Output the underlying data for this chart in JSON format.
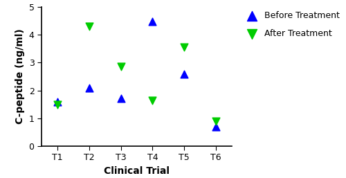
{
  "categories": [
    "T1",
    "T2",
    "T3",
    "T4",
    "T5",
    "T6"
  ],
  "before_treatment": [
    1.6,
    2.08,
    1.72,
    4.48,
    2.6,
    0.68
  ],
  "after_treatment": [
    1.48,
    4.32,
    2.85,
    1.65,
    3.55,
    0.88
  ],
  "before_color": "#0000FF",
  "after_color": "#00CC00",
  "xlabel": "Clinical Trial",
  "ylabel": "C-peptide (ng/ml)",
  "ylim": [
    0,
    5
  ],
  "yticks": [
    0,
    1,
    2,
    3,
    4,
    5
  ],
  "label_fontsize": 10,
  "tick_fontsize": 9,
  "legend_before": "Before Treatment",
  "legend_after": "After Treatment",
  "legend_fontsize": 9,
  "marker_size": 60
}
